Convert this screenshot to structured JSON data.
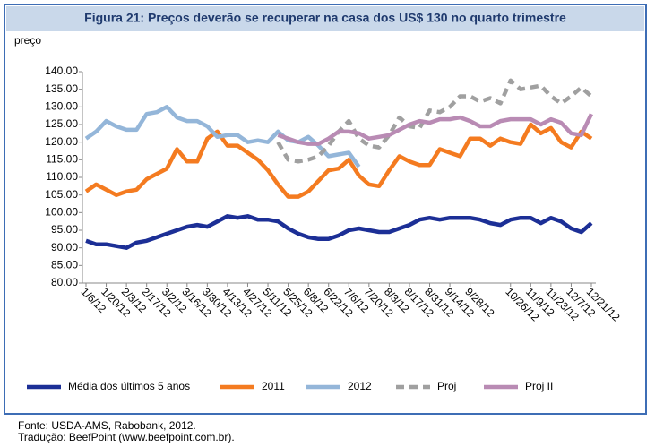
{
  "chart_data": {
    "type": "line",
    "title": "Figura 21: Preços deverão se recuperar na casa dos US$ 130 no quarto trimestre",
    "y_label": "preço",
    "categories": [
      "1/6/12",
      null,
      "1/20/12",
      null,
      "2/3/12",
      null,
      "2/17/12",
      null,
      "3/2/12",
      null,
      "3/16/12",
      null,
      "3/30/12",
      null,
      "4/13/12",
      null,
      "4/27/12",
      null,
      "5/11/12",
      null,
      "5/25/12",
      null,
      "6/8/12",
      null,
      "6/22/12",
      null,
      "7/6/12",
      null,
      "7/20/12",
      null,
      "8/3/12",
      null,
      "8/17/12",
      null,
      "8/31/12",
      null,
      "9/14/12",
      null,
      "9/28/12",
      null,
      null,
      null,
      "10/26/12",
      null,
      "11/9/12",
      null,
      "11/23/12",
      null,
      "12/7/12",
      null,
      "12/21/12"
    ],
    "series": [
      {
        "name": "Média dos últimos 5 anos",
        "color": "#1c2f96",
        "dashed": false,
        "values": [
          92,
          91,
          91,
          90.5,
          90,
          91.5,
          92,
          93,
          94,
          95,
          96,
          96.5,
          96,
          97.5,
          99,
          98.5,
          99,
          98,
          98,
          97.5,
          95.5,
          94,
          93,
          92.5,
          92.5,
          93.5,
          95,
          95.5,
          95,
          94.5,
          94.5,
          95.5,
          96.5,
          98,
          98.5,
          98,
          98.5,
          98.5,
          98.5,
          98,
          97,
          96.5,
          98,
          98.5,
          98.5,
          97,
          98.5,
          97.5,
          95.5,
          94.5,
          97
        ]
      },
      {
        "name": "2011",
        "color": "#f47b20",
        "dashed": false,
        "values": [
          106,
          108,
          106.5,
          105,
          106,
          106.5,
          109.5,
          111,
          112.5,
          118,
          114.5,
          114.5,
          121,
          123,
          119,
          119,
          117,
          115,
          112,
          108,
          104.5,
          104.5,
          106,
          109,
          112,
          112.5,
          115,
          110.5,
          108,
          107.5,
          112,
          116,
          114.5,
          113.5,
          113.5,
          118,
          117,
          116,
          121,
          121,
          119,
          121,
          120,
          119.5,
          125,
          122.5,
          124,
          120,
          118.5,
          123,
          121
        ]
      },
      {
        "name": "2012",
        "color": "#94b6d9",
        "dashed": false,
        "values": [
          121,
          123,
          126,
          124.5,
          123.5,
          123.5,
          128,
          128.5,
          130,
          127,
          126,
          126,
          124.5,
          121.5,
          122,
          122,
          120,
          120.5,
          120,
          123,
          120.5,
          120,
          121.5,
          119,
          116,
          116.5,
          117,
          113,
          null,
          null,
          null,
          null,
          null,
          null,
          null,
          null,
          null,
          null,
          null,
          null,
          null,
          null,
          null,
          null,
          null,
          null,
          null,
          null,
          null,
          null,
          null
        ]
      },
      {
        "name": "Proj",
        "color": "#a0a0a0",
        "dashed": true,
        "values": [
          null,
          null,
          null,
          null,
          null,
          null,
          null,
          null,
          null,
          null,
          null,
          null,
          null,
          null,
          null,
          null,
          null,
          null,
          null,
          120,
          115,
          114.5,
          115,
          116,
          119,
          123,
          126,
          121,
          119,
          118.5,
          122,
          127,
          124.5,
          124,
          129,
          128.5,
          130,
          133,
          133,
          131.5,
          132.5,
          131,
          137.5,
          135,
          135.5,
          136,
          133,
          131,
          133,
          135.5,
          133
        ]
      },
      {
        "name": "Proj II",
        "color": "#b98bb4",
        "dashed": false,
        "values": [
          null,
          null,
          null,
          null,
          null,
          null,
          null,
          null,
          null,
          null,
          null,
          null,
          null,
          null,
          null,
          null,
          null,
          null,
          null,
          122,
          121,
          120,
          119.5,
          119.5,
          121,
          123,
          123,
          122.5,
          121,
          121.5,
          122,
          123.5,
          125,
          126,
          125.5,
          126.5,
          126.5,
          127,
          126,
          124.5,
          124.5,
          126,
          126.5,
          126.5,
          126.5,
          125,
          126.5,
          125.5,
          122.5,
          122,
          128
        ]
      }
    ],
    "ylim": [
      80,
      140
    ],
    "yticks": [
      {
        "value": 80,
        "label": "80.00"
      },
      {
        "value": 85,
        "label": "85.00"
      },
      {
        "value": 90,
        "label": "90.00"
      },
      {
        "value": 95,
        "label": "95.00"
      },
      {
        "value": 100,
        "label": "100.00"
      },
      {
        "value": 105,
        "label": "105.00"
      },
      {
        "value": 110,
        "label": "110.00"
      },
      {
        "value": 115,
        "label": "115.00"
      },
      {
        "value": 120,
        "label": "120.00"
      },
      {
        "value": 125,
        "label": "125.00"
      },
      {
        "value": 130,
        "label": "130.00"
      },
      {
        "value": 135,
        "label": "135.00"
      },
      {
        "value": 140,
        "label": "140.00"
      }
    ],
    "grid": false,
    "legend": "bottom",
    "source": [
      "Fonte: USDA-AMS, Rabobank, 2012.",
      "Tradução: BeefPoint (www.beefpoint.com.br)."
    ]
  }
}
